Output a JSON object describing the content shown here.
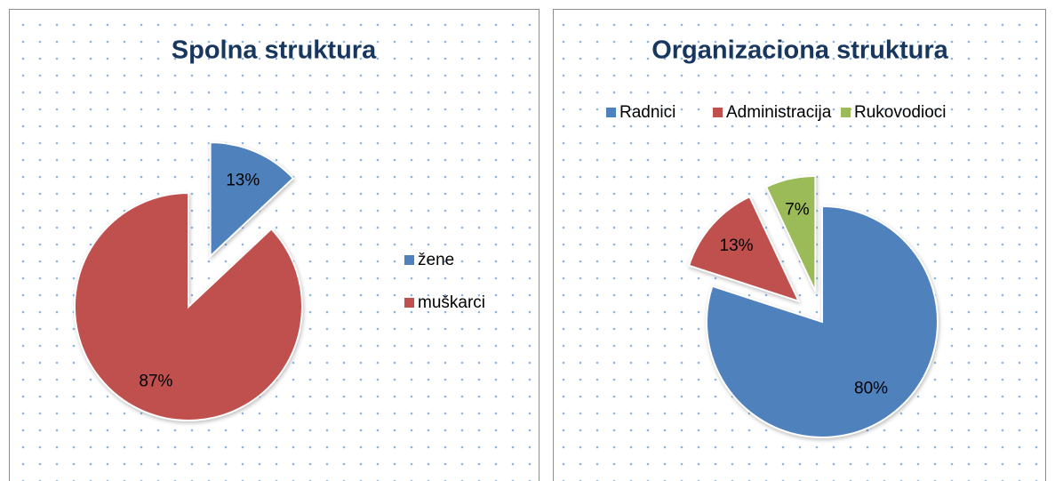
{
  "chart_data": [
    {
      "type": "pie",
      "title": "Spolna struktura",
      "categories": [
        "žene",
        "muškarci"
      ],
      "values": [
        13,
        87
      ],
      "value_labels": [
        "13%",
        "87%"
      ],
      "colors": [
        "#4f81bd",
        "#c0504d"
      ],
      "legend": "right"
    },
    {
      "type": "pie",
      "title": "Organizaciona struktura",
      "categories": [
        "Radnici",
        "Administracija",
        "Rukovodioci"
      ],
      "values": [
        80,
        13,
        7
      ],
      "value_labels": [
        "80%",
        "13%",
        "7%"
      ],
      "colors": [
        "#4f81bd",
        "#c0504d",
        "#9bbb59"
      ],
      "legend": "top"
    }
  ]
}
